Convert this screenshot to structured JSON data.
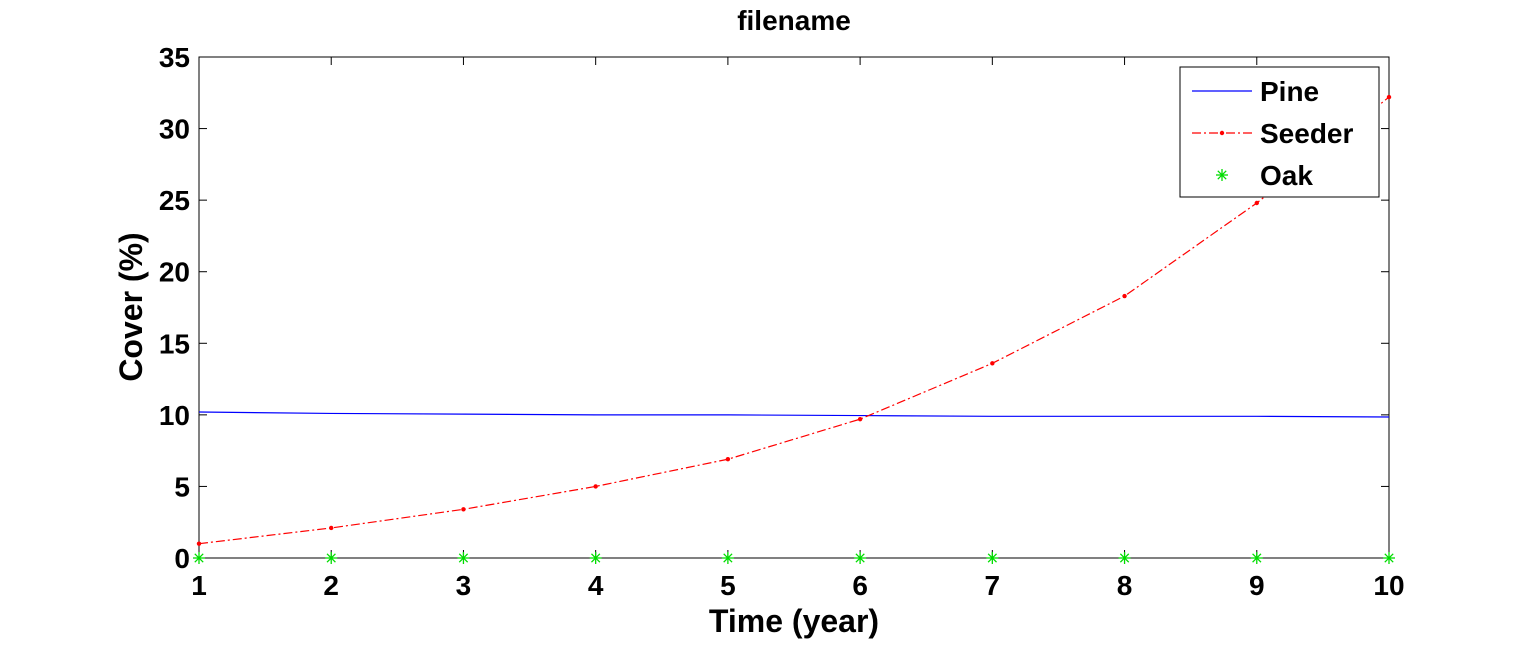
{
  "chart_data": {
    "type": "line",
    "title": "filename",
    "xlabel": "Time (year)",
    "ylabel": "Cover (%)",
    "xlim": [
      1,
      10
    ],
    "ylim": [
      0,
      35
    ],
    "xticks": [
      1,
      2,
      3,
      4,
      5,
      6,
      7,
      8,
      9,
      10
    ],
    "yticks": [
      0,
      5,
      10,
      15,
      20,
      25,
      30,
      35
    ],
    "grid": false,
    "legend_position": "top-right",
    "x": [
      1,
      2,
      3,
      4,
      5,
      6,
      7,
      8,
      9,
      10
    ],
    "series": [
      {
        "name": "Pine",
        "color": "#0000ff",
        "style": "solid",
        "marker": "none",
        "values": [
          10.2,
          10.1,
          10.05,
          10.0,
          10.0,
          9.95,
          9.9,
          9.9,
          9.9,
          9.85
        ]
      },
      {
        "name": "Seeder",
        "color": "#ff0000",
        "style": "dash-dot",
        "marker": "dot",
        "values": [
          1.0,
          2.1,
          3.4,
          5.0,
          6.9,
          9.7,
          13.6,
          18.3,
          24.8,
          32.2
        ]
      },
      {
        "name": "Oak",
        "color": "#00dd00",
        "style": "none",
        "marker": "asterisk",
        "values": [
          0,
          0,
          0,
          0,
          0,
          0,
          0,
          0,
          0,
          0
        ]
      }
    ]
  }
}
